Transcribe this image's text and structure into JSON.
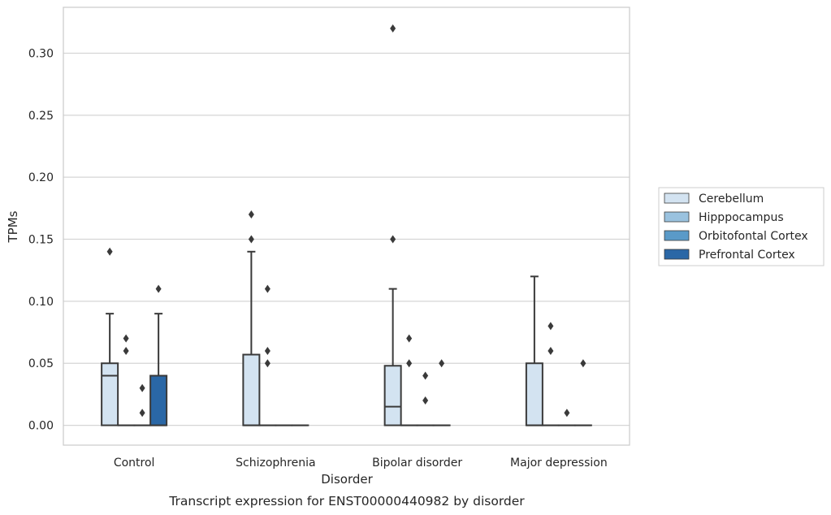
{
  "chart_data": {
    "type": "box",
    "title": "",
    "caption": "Transcript expression for ENST00000440982 by disorder",
    "xlabel": "Disorder",
    "ylabel": "TPMs",
    "ylim": [
      -0.016,
      0.337
    ],
    "yticks": [
      0.0,
      0.05,
      0.1,
      0.15,
      0.2,
      0.25,
      0.3
    ],
    "ytick_labels": [
      "0.00",
      "0.05",
      "0.10",
      "0.15",
      "0.20",
      "0.25",
      "0.30"
    ],
    "grid": "horizontal",
    "legend_position": "right",
    "categories": [
      "Control",
      "Schizophrenia",
      "Bipolar disorder",
      "Major depression"
    ],
    "series": [
      {
        "name": "Cerebellum",
        "color": "#d3e3f1",
        "boxes": [
          {
            "q1": 0.0,
            "median": 0.04,
            "q3": 0.05,
            "whisker_low": 0.0,
            "whisker_high": 0.09,
            "outliers": [
              0.14
            ]
          },
          {
            "q1": 0.0,
            "median": 0.0,
            "q3": 0.057,
            "whisker_low": 0.0,
            "whisker_high": 0.14,
            "outliers": [
              0.15,
              0.17
            ]
          },
          {
            "q1": 0.0,
            "median": 0.015,
            "q3": 0.048,
            "whisker_low": 0.0,
            "whisker_high": 0.11,
            "outliers": [
              0.15,
              0.32
            ]
          },
          {
            "q1": 0.0,
            "median": 0.0,
            "q3": 0.05,
            "whisker_low": 0.0,
            "whisker_high": 0.12,
            "outliers": []
          }
        ]
      },
      {
        "name": "Hipppocampus",
        "color": "#9ac2df",
        "boxes": [
          {
            "q1": 0.0,
            "median": 0.0,
            "q3": 0.0,
            "whisker_low": 0.0,
            "whisker_high": 0.0,
            "outliers": [
              0.06,
              0.07
            ]
          },
          {
            "q1": 0.0,
            "median": 0.0,
            "q3": 0.0,
            "whisker_low": 0.0,
            "whisker_high": 0.0,
            "outliers": [
              0.05,
              0.06,
              0.11
            ]
          },
          {
            "q1": 0.0,
            "median": 0.0,
            "q3": 0.0,
            "whisker_low": 0.0,
            "whisker_high": 0.0,
            "outliers": [
              0.05,
              0.07
            ]
          },
          {
            "q1": 0.0,
            "median": 0.0,
            "q3": 0.0,
            "whisker_low": 0.0,
            "whisker_high": 0.0,
            "outliers": [
              0.06,
              0.08
            ]
          }
        ]
      },
      {
        "name": "Orbitofontal Cortex",
        "color": "#5a9ac8",
        "boxes": [
          {
            "q1": 0.0,
            "median": 0.0,
            "q3": 0.0,
            "whisker_low": 0.0,
            "whisker_high": 0.0,
            "outliers": [
              0.01,
              0.03
            ]
          },
          {
            "q1": 0.0,
            "median": 0.0,
            "q3": 0.0,
            "whisker_low": 0.0,
            "whisker_high": 0.0,
            "outliers": []
          },
          {
            "q1": 0.0,
            "median": 0.0,
            "q3": 0.0,
            "whisker_low": 0.0,
            "whisker_high": 0.0,
            "outliers": [
              0.02,
              0.04
            ]
          },
          {
            "q1": 0.0,
            "median": 0.0,
            "q3": 0.0,
            "whisker_low": 0.0,
            "whisker_high": 0.0,
            "outliers": [
              0.01
            ]
          }
        ]
      },
      {
        "name": "Prefrontal Cortex",
        "color": "#2a67a6",
        "boxes": [
          {
            "q1": 0.0,
            "median": 0.0,
            "q3": 0.04,
            "whisker_low": 0.0,
            "whisker_high": 0.09,
            "outliers": [
              0.11
            ]
          },
          {
            "q1": 0.0,
            "median": 0.0,
            "q3": 0.0,
            "whisker_low": 0.0,
            "whisker_high": 0.0,
            "outliers": []
          },
          {
            "q1": 0.0,
            "median": 0.0,
            "q3": 0.0,
            "whisker_low": 0.0,
            "whisker_high": 0.0,
            "outliers": [
              0.05
            ]
          },
          {
            "q1": 0.0,
            "median": 0.0,
            "q3": 0.0,
            "whisker_low": 0.0,
            "whisker_high": 0.0,
            "outliers": [
              0.05
            ]
          }
        ]
      }
    ]
  },
  "colors": {
    "grid": "#d5d5d5",
    "frame": "#cccccc",
    "line": "#3a3a3a",
    "text": "#262626"
  }
}
